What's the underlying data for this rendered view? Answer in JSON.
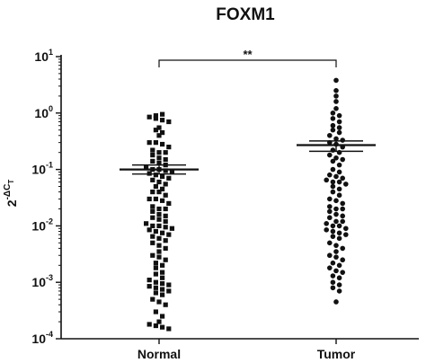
{
  "chart_data": {
    "type": "scatter",
    "title": "FOXM1",
    "ylabel": {
      "base": "2",
      "exp_prefix": "-Δ",
      "exp_main": "C",
      "exp_sub": "T"
    },
    "yscale": "log",
    "ylim": [
      0.0001,
      10
    ],
    "yticks": [
      {
        "value": 10,
        "base": "10",
        "exp": "1"
      },
      {
        "value": 1,
        "base": "10",
        "exp": "0"
      },
      {
        "value": 0.1,
        "base": "10",
        "exp": "-1"
      },
      {
        "value": 0.01,
        "base": "10",
        "exp": "-2"
      },
      {
        "value": 0.001,
        "base": "10",
        "exp": "-3"
      },
      {
        "value": 0.0001,
        "base": "10",
        "exp": "-4"
      }
    ],
    "categories": [
      "Normal",
      "Tumor"
    ],
    "groups": [
      {
        "category": "Normal",
        "marker": "square",
        "mean": 0.1,
        "sem_upper": 0.12,
        "sem_lower": 0.083,
        "values": [
          0.9,
          0.95,
          0.85,
          0.8,
          0.75,
          0.7,
          0.55,
          0.5,
          0.45,
          0.4,
          0.3,
          0.3,
          0.28,
          0.25,
          0.22,
          0.2,
          0.2,
          0.18,
          0.16,
          0.15,
          0.14,
          0.13,
          0.12,
          0.11,
          0.1,
          0.1,
          0.095,
          0.09,
          0.085,
          0.08,
          0.075,
          0.07,
          0.065,
          0.06,
          0.055,
          0.05,
          0.045,
          0.04,
          0.04,
          0.035,
          0.03,
          0.03,
          0.028,
          0.025,
          0.022,
          0.02,
          0.02,
          0.018,
          0.016,
          0.015,
          0.014,
          0.013,
          0.012,
          0.011,
          0.01,
          0.01,
          0.0095,
          0.009,
          0.0085,
          0.008,
          0.0075,
          0.007,
          0.0065,
          0.006,
          0.0055,
          0.005,
          0.0045,
          0.004,
          0.0035,
          0.003,
          0.0028,
          0.0025,
          0.0022,
          0.002,
          0.0018,
          0.0015,
          0.0014,
          0.0012,
          0.0011,
          0.001,
          0.00095,
          0.0009,
          0.00085,
          0.0008,
          0.00075,
          0.0007,
          0.00065,
          0.0006,
          0.0005,
          0.00045,
          0.0004,
          0.0003,
          0.00025,
          0.0002,
          0.00018,
          0.00017,
          0.00016,
          0.00015
        ]
      },
      {
        "category": "Tumor",
        "marker": "circle",
        "mean": 0.27,
        "sem_upper": 0.32,
        "sem_lower": 0.21,
        "values": [
          3.8,
          2.5,
          2.0,
          1.6,
          1.2,
          1.0,
          0.9,
          0.8,
          0.7,
          0.6,
          0.55,
          0.5,
          0.45,
          0.4,
          0.35,
          0.33,
          0.3,
          0.28,
          0.25,
          0.22,
          0.2,
          0.18,
          0.16,
          0.15,
          0.14,
          0.12,
          0.1,
          0.09,
          0.08,
          0.075,
          0.07,
          0.065,
          0.06,
          0.06,
          0.055,
          0.05,
          0.045,
          0.04,
          0.035,
          0.03,
          0.028,
          0.025,
          0.022,
          0.02,
          0.02,
          0.018,
          0.016,
          0.015,
          0.014,
          0.012,
          0.012,
          0.011,
          0.01,
          0.01,
          0.009,
          0.0085,
          0.008,
          0.0075,
          0.007,
          0.0065,
          0.006,
          0.005,
          0.0045,
          0.004,
          0.0035,
          0.003,
          0.0028,
          0.0025,
          0.0022,
          0.002,
          0.0018,
          0.0016,
          0.0015,
          0.0013,
          0.0012,
          0.001,
          0.0009,
          0.0008,
          0.0007,
          0.00045
        ]
      }
    ],
    "significance": {
      "label": "**",
      "between": [
        "Normal",
        "Tumor"
      ]
    },
    "grid": false,
    "legend": "none"
  }
}
